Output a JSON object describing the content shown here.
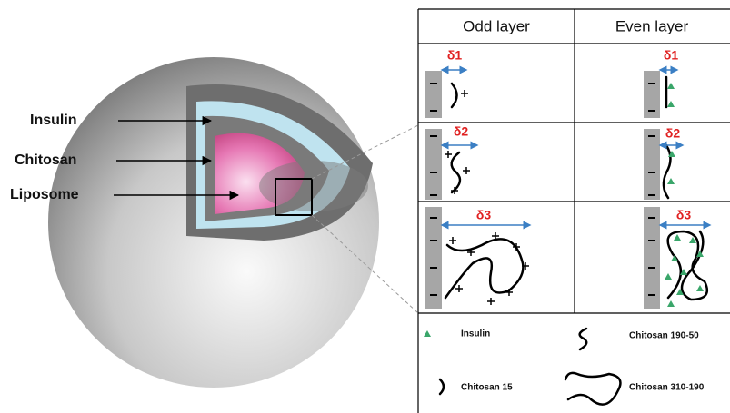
{
  "sphere_labels": [
    "Insulin",
    "Chitosan",
    "Liposome"
  ],
  "table": {
    "headers": [
      "Odd layer",
      "Even layer"
    ],
    "rows": [
      [
        "δ1",
        "δ1"
      ],
      [
        "δ2",
        "δ2"
      ],
      [
        "δ3",
        "δ3"
      ]
    ]
  },
  "legend": [
    "Insulin",
    "Chitosan 190-50",
    "Chitosan 15",
    "Chitosan 310-190"
  ]
}
